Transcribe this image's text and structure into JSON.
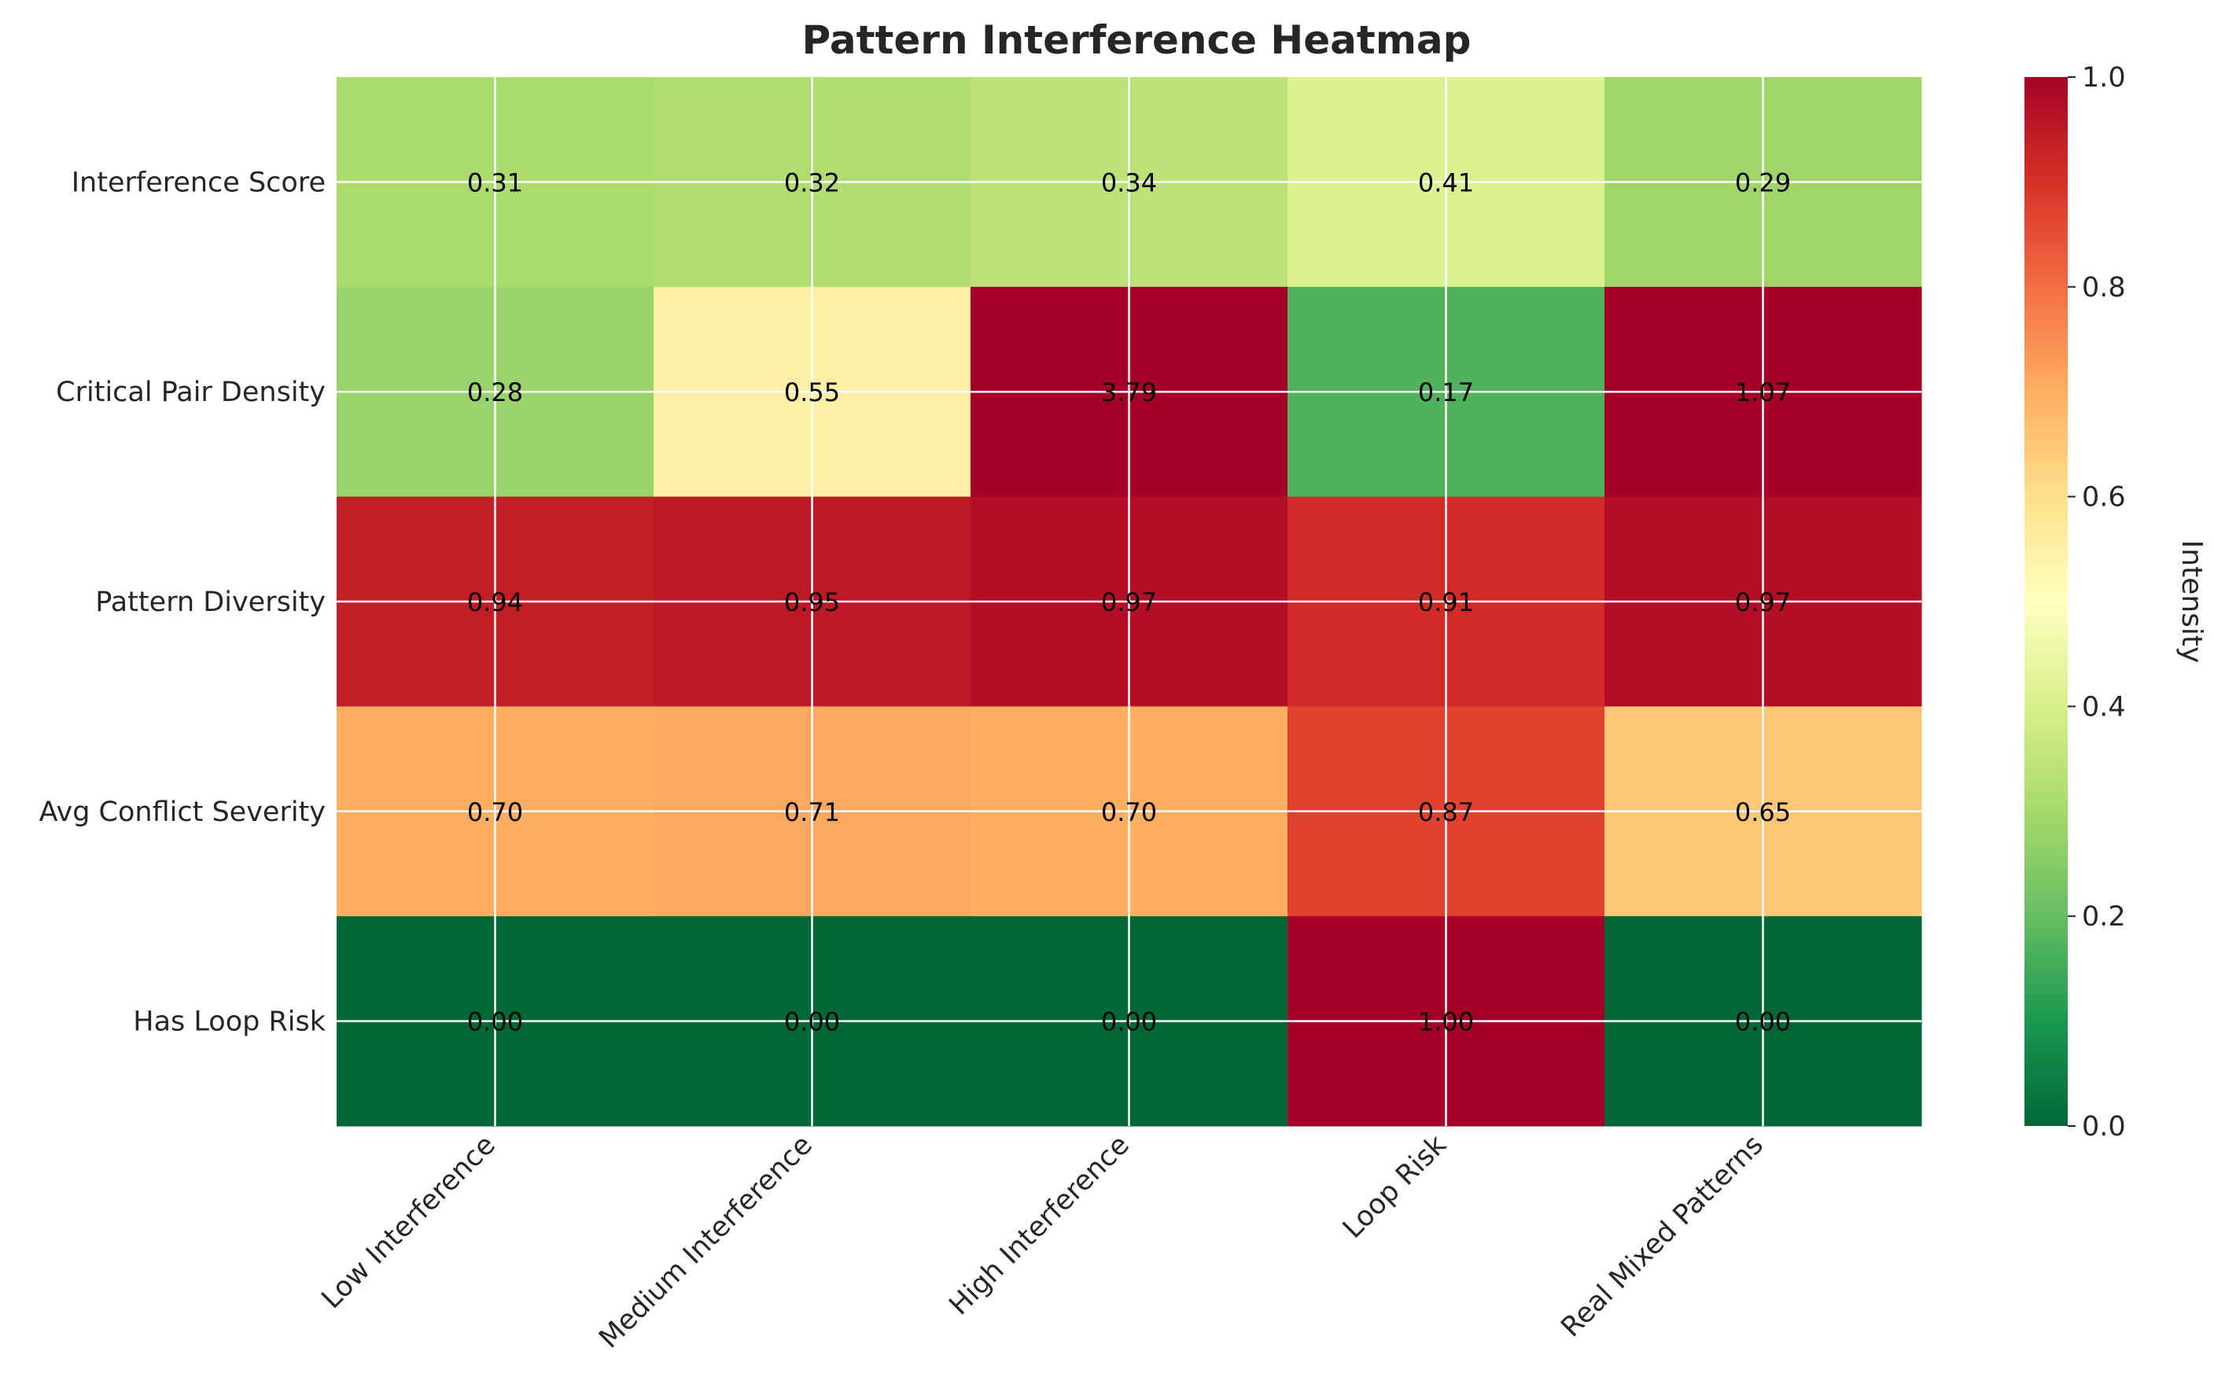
{
  "chart_data": {
    "type": "heatmap",
    "title": "Pattern Interference Heatmap",
    "columns": [
      "Low Interference",
      "Medium Interference",
      "High Interference",
      "Loop Risk",
      "Real Mixed Patterns"
    ],
    "rows": [
      "Interference Score",
      "Critical Pair Density",
      "Pattern Diversity",
      "Avg Conflict Severity",
      "Has Loop Risk"
    ],
    "values": [
      [
        0.31,
        0.32,
        0.34,
        0.41,
        0.29
      ],
      [
        0.28,
        0.55,
        3.79,
        0.17,
        1.07
      ],
      [
        0.94,
        0.95,
        0.97,
        0.91,
        0.97
      ],
      [
        0.7,
        0.71,
        0.7,
        0.87,
        0.65
      ],
      [
        0.0,
        0.0,
        0.0,
        1.0,
        0.0
      ]
    ],
    "value_labels": [
      [
        "0.31",
        "0.32",
        "0.34",
        "0.41",
        "0.29"
      ],
      [
        "0.28",
        "0.55",
        "3.79",
        "0.17",
        "1.07"
      ],
      [
        "0.94",
        "0.95",
        "0.97",
        "0.91",
        "0.97"
      ],
      [
        "0.70",
        "0.71",
        "0.70",
        "0.87",
        "0.65"
      ],
      [
        "0.00",
        "0.00",
        "0.00",
        "1.00",
        "0.00"
      ]
    ],
    "colormap": "RdYlGn_r",
    "color_range": [
      0.0,
      1.0
    ],
    "colorbar": {
      "label": "Intensity",
      "ticks": [
        "0.0",
        "0.2",
        "0.4",
        "0.6",
        "0.8",
        "1.0"
      ]
    },
    "grid": true
  }
}
